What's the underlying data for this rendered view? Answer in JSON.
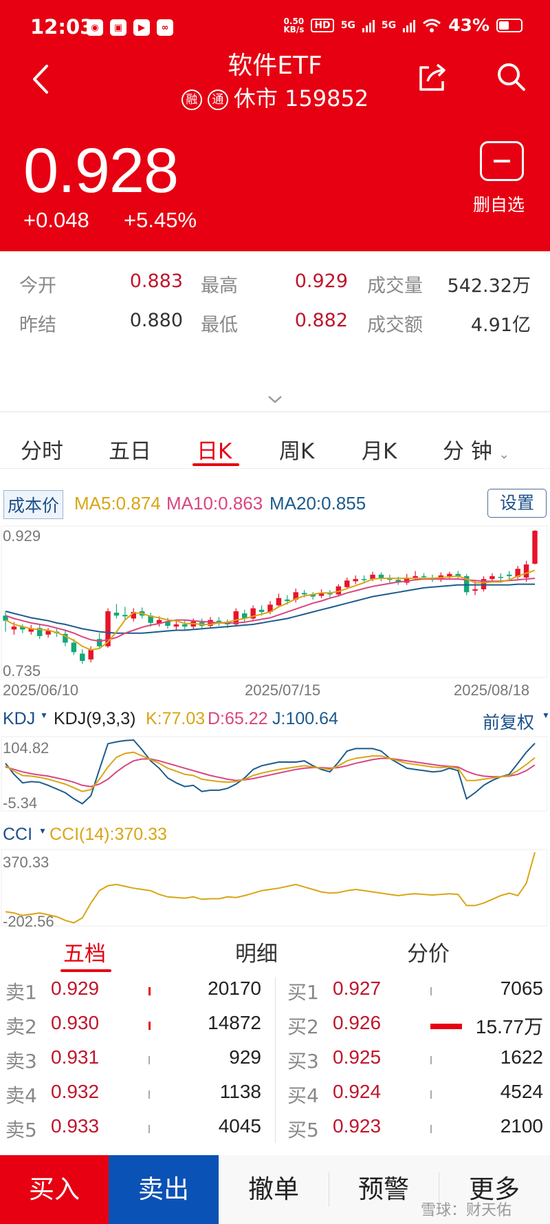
{
  "status_bar": {
    "time": "12:03",
    "net_speed_value": "0.50",
    "net_speed_unit": "KB/s",
    "hd_label": "HD",
    "sim1_label": "5G",
    "sim2_label": "5G",
    "battery": "43%",
    "app_icons": [
      "weibo-icon",
      "bilibili-icon",
      "video-app-icon",
      "link-app-icon"
    ]
  },
  "header": {
    "title": "软件ETF",
    "badge1": "融",
    "badge2": "通",
    "market_status": "休市 159852",
    "price": "0.928",
    "change": "+0.048",
    "change_pct": "+5.45%",
    "watch_label": "删自选"
  },
  "stats": {
    "open_label": "今开",
    "open": "0.883",
    "high_label": "最高",
    "high": "0.929",
    "volume_label": "成交量",
    "volume": "542.32万",
    "prev_label": "昨结",
    "prev": "0.880",
    "low_label": "最低",
    "low": "0.882",
    "amount_label": "成交额",
    "amount": "4.91亿"
  },
  "tabs": [
    "分时",
    "五日",
    "日K",
    "周K",
    "月K",
    "分 钟"
  ],
  "active_tab": "日K",
  "ma_row": {
    "cost_label": "成本价",
    "ma5": "MA5:0.874",
    "ma10": "MA10:0.863",
    "ma20": "MA20:0.855",
    "settings_label": "设置"
  },
  "kdj_row": {
    "name": "KDJ",
    "params": "KDJ(9,3,3)",
    "k": "K:77.03",
    "d": "D:65.22",
    "j": "J:100.64",
    "adjust_label": "前复权"
  },
  "cci_row": {
    "name": "CCI",
    "value": "CCI(14):370.33"
  },
  "colors": {
    "brand_red": "#e60012",
    "up": "#e8132b",
    "down": "#12a87a",
    "ma5": "#d9a514",
    "ma10": "#d9457f",
    "ma20": "#1c5b8e",
    "sell_blue": "#0a52b5"
  },
  "chart_data": [
    {
      "type": "candlestick",
      "ylim": [
        0.735,
        0.929
      ],
      "y_tick_labels": [
        "0.929",
        "0.735"
      ],
      "x_tick_labels": [
        "2025/06/10",
        "2025/07/15",
        "2025/08/18"
      ],
      "ohlc": [
        [
          0.812,
          0.805,
          0.817,
          0.79
        ],
        [
          0.793,
          0.797,
          0.803,
          0.786
        ],
        [
          0.797,
          0.793,
          0.8,
          0.788
        ],
        [
          0.79,
          0.794,
          0.799,
          0.786
        ],
        [
          0.795,
          0.784,
          0.8,
          0.78
        ],
        [
          0.786,
          0.791,
          0.795,
          0.782
        ],
        [
          0.79,
          0.788,
          0.794,
          0.783
        ],
        [
          0.787,
          0.775,
          0.792,
          0.77
        ],
        [
          0.775,
          0.762,
          0.78,
          0.758
        ],
        [
          0.76,
          0.75,
          0.766,
          0.746
        ],
        [
          0.752,
          0.765,
          0.77,
          0.748
        ],
        [
          0.78,
          0.77,
          0.788,
          0.766
        ],
        [
          0.77,
          0.818,
          0.822,
          0.768
        ],
        [
          0.816,
          0.812,
          0.828,
          0.808
        ],
        [
          0.813,
          0.811,
          0.824,
          0.806
        ],
        [
          0.808,
          0.817,
          0.822,
          0.804
        ],
        [
          0.818,
          0.812,
          0.823,
          0.808
        ],
        [
          0.812,
          0.802,
          0.816,
          0.797
        ],
        [
          0.801,
          0.806,
          0.811,
          0.797
        ],
        [
          0.804,
          0.798,
          0.809,
          0.794
        ],
        [
          0.797,
          0.8,
          0.804,
          0.793
        ],
        [
          0.8,
          0.797,
          0.805,
          0.793
        ],
        [
          0.797,
          0.804,
          0.808,
          0.794
        ],
        [
          0.803,
          0.798,
          0.808,
          0.793
        ],
        [
          0.798,
          0.806,
          0.81,
          0.795
        ],
        [
          0.805,
          0.803,
          0.81,
          0.798
        ],
        [
          0.802,
          0.8,
          0.807,
          0.795
        ],
        [
          0.8,
          0.818,
          0.822,
          0.798
        ],
        [
          0.815,
          0.808,
          0.82,
          0.803
        ],
        [
          0.808,
          0.822,
          0.826,
          0.806
        ],
        [
          0.82,
          0.817,
          0.826,
          0.812
        ],
        [
          0.817,
          0.827,
          0.832,
          0.814
        ],
        [
          0.826,
          0.836,
          0.842,
          0.823
        ],
        [
          0.834,
          0.832,
          0.84,
          0.827
        ],
        [
          0.834,
          0.844,
          0.849,
          0.83
        ],
        [
          0.843,
          0.841,
          0.847,
          0.837
        ],
        [
          0.841,
          0.838,
          0.844,
          0.834
        ],
        [
          0.839,
          0.843,
          0.848,
          0.836
        ],
        [
          0.843,
          0.841,
          0.847,
          0.837
        ],
        [
          0.841,
          0.852,
          0.855,
          0.839
        ],
        [
          0.851,
          0.86,
          0.864,
          0.848
        ],
        [
          0.859,
          0.862,
          0.867,
          0.855
        ],
        [
          0.862,
          0.861,
          0.867,
          0.857
        ],
        [
          0.862,
          0.868,
          0.872,
          0.859
        ],
        [
          0.868,
          0.863,
          0.871,
          0.859
        ],
        [
          0.863,
          0.861,
          0.868,
          0.857
        ],
        [
          0.861,
          0.858,
          0.865,
          0.854
        ],
        [
          0.857,
          0.864,
          0.869,
          0.854
        ],
        [
          0.864,
          0.866,
          0.873,
          0.86
        ],
        [
          0.866,
          0.865,
          0.87,
          0.862
        ],
        [
          0.864,
          0.861,
          0.868,
          0.858
        ],
        [
          0.862,
          0.867,
          0.871,
          0.858
        ],
        [
          0.866,
          0.869,
          0.872,
          0.862
        ],
        [
          0.869,
          0.865,
          0.873,
          0.862
        ],
        [
          0.866,
          0.844,
          0.869,
          0.84
        ],
        [
          0.846,
          0.848,
          0.86,
          0.84
        ],
        [
          0.848,
          0.862,
          0.866,
          0.845
        ],
        [
          0.862,
          0.866,
          0.87,
          0.858
        ],
        [
          0.865,
          0.864,
          0.87,
          0.86
        ],
        [
          0.868,
          0.866,
          0.873,
          0.862
        ],
        [
          0.865,
          0.876,
          0.88,
          0.862
        ],
        [
          0.864,
          0.882,
          0.887,
          0.858
        ],
        [
          0.883,
          0.928,
          0.929,
          0.882
        ]
      ],
      "ma5": [
        0.806,
        0.8,
        0.797,
        0.794,
        0.793,
        0.792,
        0.789,
        0.784,
        0.778,
        0.77,
        0.765,
        0.767,
        0.776,
        0.79,
        0.806,
        0.816,
        0.815,
        0.811,
        0.809,
        0.806,
        0.805,
        0.801,
        0.801,
        0.8,
        0.8,
        0.802,
        0.803,
        0.806,
        0.808,
        0.811,
        0.814,
        0.817,
        0.824,
        0.829,
        0.835,
        0.839,
        0.841,
        0.843,
        0.843,
        0.845,
        0.849,
        0.853,
        0.857,
        0.862,
        0.863,
        0.863,
        0.863,
        0.863,
        0.863,
        0.863,
        0.863,
        0.864,
        0.865,
        0.866,
        0.862,
        0.857,
        0.857,
        0.858,
        0.858,
        0.861,
        0.866,
        0.87,
        0.874
      ],
      "ma10": [
        0.812,
        0.808,
        0.805,
        0.802,
        0.8,
        0.798,
        0.795,
        0.792,
        0.788,
        0.783,
        0.779,
        0.777,
        0.779,
        0.782,
        0.788,
        0.792,
        0.796,
        0.799,
        0.801,
        0.804,
        0.806,
        0.806,
        0.805,
        0.804,
        0.803,
        0.802,
        0.802,
        0.802,
        0.803,
        0.805,
        0.807,
        0.809,
        0.813,
        0.817,
        0.821,
        0.825,
        0.829,
        0.832,
        0.836,
        0.839,
        0.843,
        0.846,
        0.849,
        0.852,
        0.854,
        0.856,
        0.858,
        0.859,
        0.861,
        0.862,
        0.862,
        0.862,
        0.862,
        0.862,
        0.861,
        0.86,
        0.859,
        0.859,
        0.859,
        0.86,
        0.861,
        0.862,
        0.863
      ],
      "ma20": [
        0.818,
        0.815,
        0.812,
        0.809,
        0.807,
        0.805,
        0.802,
        0.8,
        0.797,
        0.794,
        0.792,
        0.79,
        0.789,
        0.788,
        0.788,
        0.788,
        0.788,
        0.789,
        0.79,
        0.791,
        0.792,
        0.792,
        0.793,
        0.794,
        0.795,
        0.796,
        0.797,
        0.798,
        0.799,
        0.8,
        0.802,
        0.804,
        0.806,
        0.808,
        0.811,
        0.814,
        0.817,
        0.82,
        0.823,
        0.826,
        0.829,
        0.832,
        0.835,
        0.838,
        0.84,
        0.842,
        0.844,
        0.846,
        0.848,
        0.85,
        0.851,
        0.852,
        0.853,
        0.854,
        0.854,
        0.854,
        0.854,
        0.854,
        0.854,
        0.854,
        0.855,
        0.855,
        0.855
      ]
    },
    {
      "type": "line",
      "name": "KDJ",
      "ylim": [
        -5.34,
        104.82
      ],
      "y_tick_labels": [
        "104.82",
        "-5.34"
      ],
      "series": [
        {
          "name": "K",
          "color": "#d9a514",
          "values": [
            64,
            55,
            48,
            47,
            45,
            42,
            38,
            34,
            28,
            22,
            25,
            42,
            62,
            78,
            84,
            86,
            80,
            74,
            68,
            60,
            55,
            50,
            48,
            42,
            40,
            38,
            37,
            38,
            42,
            48,
            52,
            55,
            58,
            60,
            62,
            64,
            62,
            60,
            58,
            64,
            72,
            76,
            78,
            80,
            80,
            76,
            72,
            68,
            66,
            64,
            62,
            61,
            62,
            60,
            40,
            40,
            42,
            44,
            46,
            48,
            56,
            66,
            77.03
          ]
        },
        {
          "name": "D",
          "color": "#d9457f",
          "values": [
            62,
            58,
            54,
            51,
            49,
            47,
            44,
            41,
            37,
            32,
            30,
            34,
            42,
            54,
            64,
            72,
            75,
            75,
            72,
            68,
            64,
            60,
            56,
            52,
            48,
            45,
            42,
            40,
            41,
            43,
            46,
            49,
            52,
            55,
            58,
            60,
            61,
            61,
            60,
            61,
            64,
            68,
            71,
            74,
            76,
            76,
            74,
            72,
            70,
            68,
            66,
            64,
            63,
            62,
            55,
            50,
            47,
            46,
            46,
            47,
            50,
            56,
            65.22
          ]
        },
        {
          "name": "J",
          "color": "#1c5b8e",
          "values": [
            68,
            50,
            36,
            38,
            37,
            32,
            26,
            20,
            10,
            2,
            15,
            58,
            100,
            103,
            105,
            106,
            90,
            72,
            60,
            44,
            36,
            30,
            32,
            22,
            24,
            24,
            27,
            34,
            44,
            58,
            64,
            67,
            70,
            70,
            70,
            72,
            64,
            58,
            54,
            70,
            88,
            92,
            92,
            92,
            88,
            76,
            68,
            60,
            58,
            56,
            54,
            55,
            60,
            56,
            10,
            20,
            32,
            40,
            46,
            50,
            68,
            86,
            100.64
          ]
        }
      ]
    },
    {
      "type": "line",
      "name": "CCI",
      "ylim": [
        -202.56,
        370.33
      ],
      "y_tick_labels": [
        "370.33",
        "-202.56"
      ],
      "series": [
        {
          "name": "CCI(14)",
          "color": "#d9a514",
          "values": [
            -110,
            -120,
            -140,
            -130,
            -120,
            -135,
            -150,
            -180,
            -200,
            -160,
            -40,
            60,
            100,
            110,
            95,
            80,
            70,
            60,
            30,
            10,
            5,
            0,
            10,
            -10,
            -5,
            -5,
            10,
            5,
            20,
            40,
            60,
            70,
            80,
            95,
            110,
            90,
            70,
            50,
            40,
            45,
            60,
            70,
            60,
            50,
            40,
            30,
            20,
            30,
            35,
            30,
            25,
            30,
            35,
            30,
            -60,
            -60,
            -40,
            -10,
            20,
            40,
            20,
            120,
            370.33
          ]
        }
      ]
    }
  ],
  "order_book": {
    "tabs": [
      "五档",
      "明细",
      "分价"
    ],
    "sells": [
      {
        "label": "卖1",
        "price": "0.929",
        "volume": "20170",
        "bar_frac": 0.13
      },
      {
        "label": "卖2",
        "price": "0.930",
        "volume": "14872",
        "bar_frac": 0.09
      },
      {
        "label": "卖3",
        "price": "0.931",
        "volume": "929",
        "bar_frac": 0.01
      },
      {
        "label": "卖4",
        "price": "0.932",
        "volume": "1138",
        "bar_frac": 0.01
      },
      {
        "label": "卖5",
        "price": "0.933",
        "volume": "4045",
        "bar_frac": 0.03
      }
    ],
    "buys": [
      {
        "label": "买1",
        "price": "0.927",
        "volume": "7065",
        "bar_frac": 0.045
      },
      {
        "label": "买2",
        "price": "0.926",
        "volume": "15.77万",
        "bar_frac": 1.0
      },
      {
        "label": "买3",
        "price": "0.925",
        "volume": "1622",
        "bar_frac": 0.01
      },
      {
        "label": "买4",
        "price": "0.924",
        "volume": "4524",
        "bar_frac": 0.03
      },
      {
        "label": "买5",
        "price": "0.923",
        "volume": "2100",
        "bar_frac": 0.013
      }
    ]
  },
  "bottom_bar": {
    "buy": "买入",
    "sell": "卖出",
    "cancel": "撤单",
    "alert": "预警",
    "more": "更多"
  },
  "watermark": "雪球：财天佑"
}
